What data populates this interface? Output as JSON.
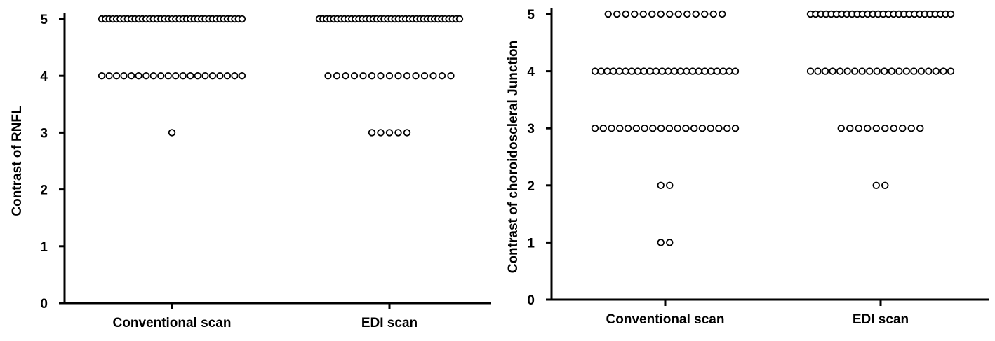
{
  "chart_data": [
    {
      "type": "dotplot",
      "y_label": "Contrast of RNFL",
      "categories": [
        "Conventional scan",
        "EDI scan"
      ],
      "values": [
        [
          5,
          5,
          5,
          5,
          5,
          5,
          5,
          5,
          5,
          5,
          5,
          5,
          5,
          5,
          5,
          5,
          5,
          5,
          5,
          5,
          5,
          5,
          5,
          5,
          5,
          5,
          5,
          5,
          5,
          5,
          5,
          5,
          5,
          5,
          5,
          5,
          5,
          5,
          5,
          4,
          4,
          4,
          4,
          4,
          4,
          4,
          4,
          4,
          4,
          4,
          4,
          4,
          4,
          4,
          4,
          4,
          4,
          4,
          4,
          3
        ],
        [
          5,
          5,
          5,
          5,
          5,
          5,
          5,
          5,
          5,
          5,
          5,
          5,
          5,
          5,
          5,
          5,
          5,
          5,
          5,
          5,
          5,
          5,
          5,
          5,
          5,
          5,
          5,
          5,
          5,
          5,
          5,
          5,
          5,
          5,
          5,
          5,
          5,
          5,
          5,
          5,
          4,
          4,
          4,
          4,
          4,
          4,
          4,
          4,
          4,
          4,
          4,
          4,
          4,
          4,
          4,
          3,
          3,
          3,
          3,
          3
        ]
      ],
      "ylim": [
        0,
        5
      ],
      "yticks": [
        0,
        1,
        2,
        3,
        4,
        5
      ]
    },
    {
      "type": "dotplot",
      "y_label": "Contrast of choroidoscleral Junction",
      "categories": [
        "Conventional scan",
        "EDI scan"
      ],
      "values": [
        [
          5,
          5,
          5,
          5,
          5,
          5,
          5,
          5,
          5,
          5,
          5,
          5,
          5,
          5,
          4,
          4,
          4,
          4,
          4,
          4,
          4,
          4,
          4,
          4,
          4,
          4,
          4,
          4,
          4,
          4,
          4,
          4,
          4,
          4,
          4,
          4,
          4,
          4,
          3,
          3,
          3,
          3,
          3,
          3,
          3,
          3,
          3,
          3,
          3,
          3,
          3,
          3,
          3,
          3,
          3,
          3,
          2,
          2,
          1,
          1
        ],
        [
          5,
          5,
          5,
          5,
          5,
          5,
          5,
          5,
          5,
          5,
          5,
          5,
          5,
          5,
          5,
          5,
          5,
          5,
          5,
          5,
          5,
          5,
          5,
          5,
          5,
          5,
          5,
          5,
          4,
          4,
          4,
          4,
          4,
          4,
          4,
          4,
          4,
          4,
          4,
          4,
          4,
          4,
          4,
          4,
          4,
          4,
          4,
          4,
          3,
          3,
          3,
          3,
          3,
          3,
          3,
          3,
          3,
          3,
          2,
          2
        ]
      ],
      "ylim": [
        0,
        5
      ],
      "yticks": [
        0,
        1,
        2,
        3,
        4,
        5
      ]
    }
  ]
}
